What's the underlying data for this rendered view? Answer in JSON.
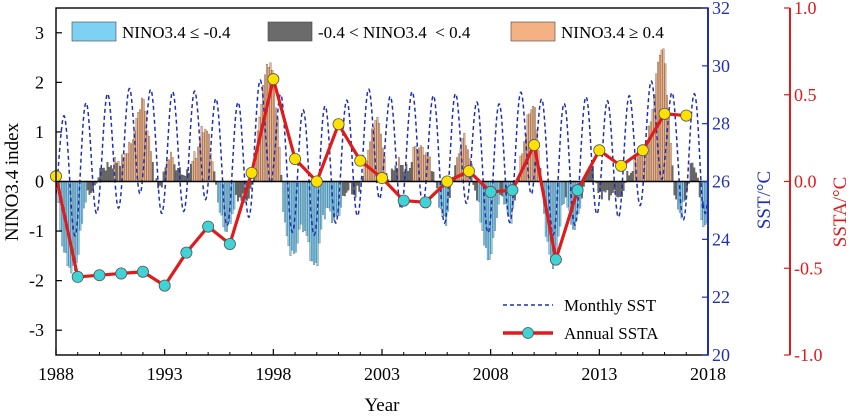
{
  "chart_data": {
    "type": "bar",
    "xlabel": "Year",
    "x_ticks": [
      "1988",
      "1993",
      "1998",
      "2003",
      "2008",
      "2013",
      "2018"
    ],
    "xlim": [
      1988,
      2018
    ],
    "axes": {
      "left": {
        "label": "NINO3.4 index",
        "range": [
          -3.5,
          3.5
        ],
        "ticks": [
          "3",
          "2",
          "1",
          "0",
          "-1",
          "-2",
          "-3"
        ],
        "color": "#000000"
      },
      "right1": {
        "label": "SST/°C",
        "range": [
          20,
          32
        ],
        "ticks": [
          "32",
          "30",
          "28",
          "26",
          "24",
          "22",
          "20"
        ],
        "color": "#1f2fb5"
      },
      "right2": {
        "label": "SSTA/°C",
        "range": [
          -1.0,
          1.0
        ],
        "ticks": [
          "1.0",
          "0.5",
          "0.0",
          "-0.5",
          "-1.0"
        ],
        "color": "#e01b1b"
      }
    },
    "legend": {
      "placement_bars": "top",
      "placement_lines": "bottom-right",
      "bar_entries": [
        {
          "label": "NINO3.4 ≤ -0.4",
          "color": "#7fd0f5"
        },
        {
          "label": "-0.4 < NINO3.4  < 0.4",
          "color": "#6b6b6b"
        },
        {
          "label": "NINO3.4 ≥ 0.4",
          "color": "#f4b183"
        }
      ],
      "line_entries": [
        {
          "label": "Monthly SST",
          "color": "#1f2fb5"
        },
        {
          "label": "Annual SSTA",
          "color": "#e01b1b"
        }
      ]
    },
    "colors": {
      "la_nina": "#7fd0f5",
      "neutral": "#6b6b6b",
      "el_nino": "#f4b183",
      "sst_line": "#1f2fb5",
      "ssta_line": "#e01b1b",
      "ssta_marker_pos": "#ffe100",
      "ssta_marker_neg": "#3fd3d6"
    },
    "nino34_seasonal": [
      {
        "year": 1988.0,
        "value": 0.2
      },
      {
        "year": 1988.25,
        "value": -1.2
      },
      {
        "year": 1988.5,
        "value": -1.6
      },
      {
        "year": 1988.75,
        "value": -1.85
      },
      {
        "year": 1989.0,
        "value": -1.6
      },
      {
        "year": 1989.25,
        "value": -0.6
      },
      {
        "year": 1989.5,
        "value": -0.2
      },
      {
        "year": 1989.75,
        "value": -0.2
      },
      {
        "year": 1990.0,
        "value": 0.2
      },
      {
        "year": 1990.25,
        "value": 0.3
      },
      {
        "year": 1990.5,
        "value": 0.3
      },
      {
        "year": 1990.75,
        "value": 0.4
      },
      {
        "year": 1991.0,
        "value": 0.4
      },
      {
        "year": 1991.25,
        "value": 0.6
      },
      {
        "year": 1991.5,
        "value": 0.8
      },
      {
        "year": 1991.75,
        "value": 1.3
      },
      {
        "year": 1992.0,
        "value": 1.75
      },
      {
        "year": 1992.25,
        "value": 1.0
      },
      {
        "year": 1992.5,
        "value": 0.2
      },
      {
        "year": 1992.75,
        "value": -0.2
      },
      {
        "year": 1993.0,
        "value": 0.2
      },
      {
        "year": 1993.25,
        "value": 0.6
      },
      {
        "year": 1993.5,
        "value": 0.3
      },
      {
        "year": 1993.75,
        "value": 0.2
      },
      {
        "year": 1994.0,
        "value": 0.1
      },
      {
        "year": 1994.25,
        "value": 0.4
      },
      {
        "year": 1994.5,
        "value": 0.6
      },
      {
        "year": 1994.75,
        "value": 1.1
      },
      {
        "year": 1995.0,
        "value": 1.0
      },
      {
        "year": 1995.25,
        "value": 0.3
      },
      {
        "year": 1995.5,
        "value": -0.5
      },
      {
        "year": 1995.75,
        "value": -1.0
      },
      {
        "year": 1996.0,
        "value": -0.9
      },
      {
        "year": 1996.25,
        "value": -0.4
      },
      {
        "year": 1996.5,
        "value": -0.3
      },
      {
        "year": 1996.75,
        "value": -0.4
      },
      {
        "year": 1997.0,
        "value": -0.2
      },
      {
        "year": 1997.25,
        "value": 0.8
      },
      {
        "year": 1997.5,
        "value": 1.8
      },
      {
        "year": 1997.75,
        "value": 2.45
      },
      {
        "year": 1998.0,
        "value": 2.2
      },
      {
        "year": 1998.25,
        "value": 1.0
      },
      {
        "year": 1998.5,
        "value": -0.8
      },
      {
        "year": 1998.75,
        "value": -1.4
      },
      {
        "year": 1999.0,
        "value": -1.5
      },
      {
        "year": 1999.25,
        "value": -0.9
      },
      {
        "year": 1999.5,
        "value": -1.0
      },
      {
        "year": 1999.75,
        "value": -1.6
      },
      {
        "year": 2000.0,
        "value": -1.75
      },
      {
        "year": 2000.25,
        "value": -0.8
      },
      {
        "year": 2000.5,
        "value": -0.5
      },
      {
        "year": 2000.75,
        "value": -0.8
      },
      {
        "year": 2001.0,
        "value": -0.7
      },
      {
        "year": 2001.25,
        "value": -0.3
      },
      {
        "year": 2001.5,
        "value": -0.1
      },
      {
        "year": 2001.75,
        "value": -0.3
      },
      {
        "year": 2002.0,
        "value": -0.1
      },
      {
        "year": 2002.25,
        "value": 0.4
      },
      {
        "year": 2002.5,
        "value": 0.9
      },
      {
        "year": 2002.75,
        "value": 1.35
      },
      {
        "year": 2003.0,
        "value": 0.9
      },
      {
        "year": 2003.25,
        "value": 0.0
      },
      {
        "year": 2003.5,
        "value": 0.2
      },
      {
        "year": 2003.75,
        "value": 0.4
      },
      {
        "year": 2004.0,
        "value": 0.3
      },
      {
        "year": 2004.25,
        "value": 0.2
      },
      {
        "year": 2004.5,
        "value": 0.7
      },
      {
        "year": 2004.75,
        "value": 0.7
      },
      {
        "year": 2005.0,
        "value": 0.6
      },
      {
        "year": 2005.25,
        "value": 0.4
      },
      {
        "year": 2005.5,
        "value": -0.1
      },
      {
        "year": 2005.75,
        "value": -0.7
      },
      {
        "year": 2006.0,
        "value": -0.8
      },
      {
        "year": 2006.25,
        "value": 0.1
      },
      {
        "year": 2006.5,
        "value": 0.5
      },
      {
        "year": 2006.75,
        "value": 0.95
      },
      {
        "year": 2007.0,
        "value": 0.6
      },
      {
        "year": 2007.25,
        "value": -0.1
      },
      {
        "year": 2007.5,
        "value": -0.6
      },
      {
        "year": 2007.75,
        "value": -1.4
      },
      {
        "year": 2008.0,
        "value": -1.6
      },
      {
        "year": 2008.25,
        "value": -0.8
      },
      {
        "year": 2008.5,
        "value": -0.2
      },
      {
        "year": 2008.75,
        "value": -0.6
      },
      {
        "year": 2009.0,
        "value": -0.8
      },
      {
        "year": 2009.25,
        "value": 0.1
      },
      {
        "year": 2009.5,
        "value": 0.7
      },
      {
        "year": 2009.75,
        "value": 1.35
      },
      {
        "year": 2010.0,
        "value": 1.6
      },
      {
        "year": 2010.25,
        "value": 0.5
      },
      {
        "year": 2010.5,
        "value": -0.9
      },
      {
        "year": 2010.75,
        "value": -1.6
      },
      {
        "year": 2011.0,
        "value": -1.7
      },
      {
        "year": 2011.25,
        "value": -0.6
      },
      {
        "year": 2011.5,
        "value": -0.3
      },
      {
        "year": 2011.75,
        "value": -1.0
      },
      {
        "year": 2012.0,
        "value": -0.8
      },
      {
        "year": 2012.25,
        "value": -0.2
      },
      {
        "year": 2012.5,
        "value": 0.3
      },
      {
        "year": 2012.75,
        "value": 0.2
      },
      {
        "year": 2013.0,
        "value": -0.3
      },
      {
        "year": 2013.25,
        "value": -0.2
      },
      {
        "year": 2013.5,
        "value": -0.3
      },
      {
        "year": 2013.75,
        "value": -0.2
      },
      {
        "year": 2014.0,
        "value": -0.4
      },
      {
        "year": 2014.25,
        "value": 0.1
      },
      {
        "year": 2014.5,
        "value": 0.2
      },
      {
        "year": 2014.75,
        "value": 0.6
      },
      {
        "year": 2015.0,
        "value": 0.6
      },
      {
        "year": 2015.25,
        "value": 0.9
      },
      {
        "year": 2015.5,
        "value": 1.6
      },
      {
        "year": 2015.75,
        "value": 2.6
      },
      {
        "year": 2016.0,
        "value": 2.65
      },
      {
        "year": 2016.25,
        "value": 1.0
      },
      {
        "year": 2016.5,
        "value": -0.4
      },
      {
        "year": 2016.75,
        "value": -0.7
      },
      {
        "year": 2017.0,
        "value": -0.3
      },
      {
        "year": 2017.25,
        "value": 0.4
      },
      {
        "year": 2017.5,
        "value": 0.2
      },
      {
        "year": 2017.75,
        "value": -0.9
      }
    ],
    "monthly_sst_series": {
      "name": "Monthly SST",
      "description_note": "",
      "mean": 26.9,
      "amplitude": 2.0,
      "peak_month": 4.5,
      "values": []
    },
    "annual_ssta": {
      "name": "Annual SSTA",
      "points": [
        {
          "year": 1988,
          "value": 0.03
        },
        {
          "year": 1989,
          "value": -0.55
        },
        {
          "year": 1990,
          "value": -0.54
        },
        {
          "year": 1991,
          "value": -0.53
        },
        {
          "year": 1992,
          "value": -0.52
        },
        {
          "year": 1993,
          "value": -0.6
        },
        {
          "year": 1994,
          "value": -0.41
        },
        {
          "year": 1995,
          "value": -0.26
        },
        {
          "year": 1996,
          "value": -0.36
        },
        {
          "year": 1997,
          "value": 0.05
        },
        {
          "year": 1998,
          "value": 0.59
        },
        {
          "year": 1999,
          "value": 0.13
        },
        {
          "year": 2000,
          "value": 0.0
        },
        {
          "year": 2001,
          "value": 0.33
        },
        {
          "year": 2002,
          "value": 0.12
        },
        {
          "year": 2003,
          "value": 0.02
        },
        {
          "year": 2004,
          "value": -0.11
        },
        {
          "year": 2005,
          "value": -0.12
        },
        {
          "year": 2006,
          "value": 0.0
        },
        {
          "year": 2007,
          "value": 0.06
        },
        {
          "year": 2008,
          "value": -0.06
        },
        {
          "year": 2009,
          "value": -0.05
        },
        {
          "year": 2010,
          "value": 0.21
        },
        {
          "year": 2011,
          "value": -0.45
        },
        {
          "year": 2012,
          "value": -0.05
        },
        {
          "year": 2013,
          "value": 0.18
        },
        {
          "year": 2014,
          "value": 0.09
        },
        {
          "year": 2015,
          "value": 0.18
        },
        {
          "year": 2016,
          "value": 0.39
        },
        {
          "year": 2017,
          "value": 0.38
        }
      ]
    }
  }
}
